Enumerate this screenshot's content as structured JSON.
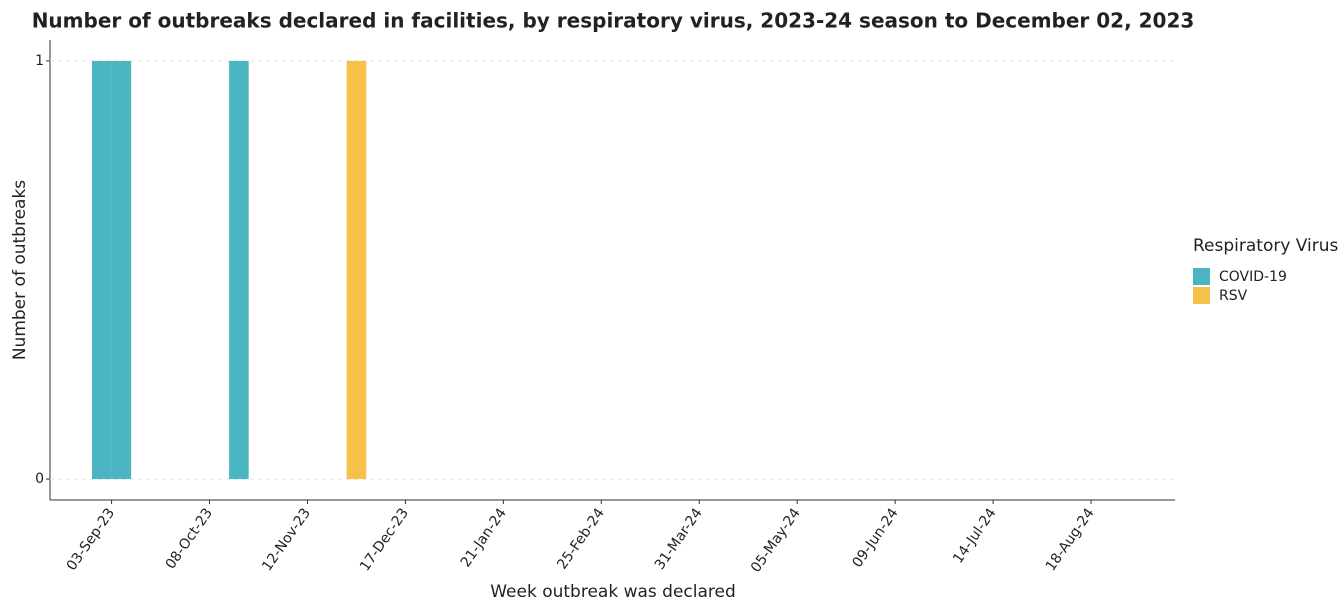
{
  "chart_data": {
    "type": "bar",
    "title": "Number of outbreaks declared in facilities, by respiratory virus, 2023-24 season to December 02, 2023",
    "x_label": "Week outbreak was declared",
    "y_label": "Number of outbreaks",
    "legend_title": "Respiratory Virus",
    "series": [
      {
        "name": "COVID-19",
        "color": "#4bb5c1",
        "x": [
          "27-Aug-23",
          "03-Sep-23",
          "15-Oct-23"
        ],
        "values": [
          1,
          1,
          1
        ]
      },
      {
        "name": "RSV",
        "color": "#f6c14b",
        "x": [
          "26-Nov-23"
        ],
        "values": [
          1
        ]
      }
    ],
    "xlim": [
      "12-Aug-23",
      "17-Sep-24"
    ],
    "xticks": [
      "03-Sep-23",
      "08-Oct-23",
      "12-Nov-23",
      "17-Dec-23",
      "21-Jan-24",
      "25-Feb-24",
      "31-Mar-24",
      "05-May-24",
      "09-Jun-24",
      "14-Jul-24",
      "18-Aug-24"
    ],
    "ylim": [
      -0.05,
      1.05
    ],
    "yticks": [
      0,
      1
    ],
    "grid": true
  }
}
